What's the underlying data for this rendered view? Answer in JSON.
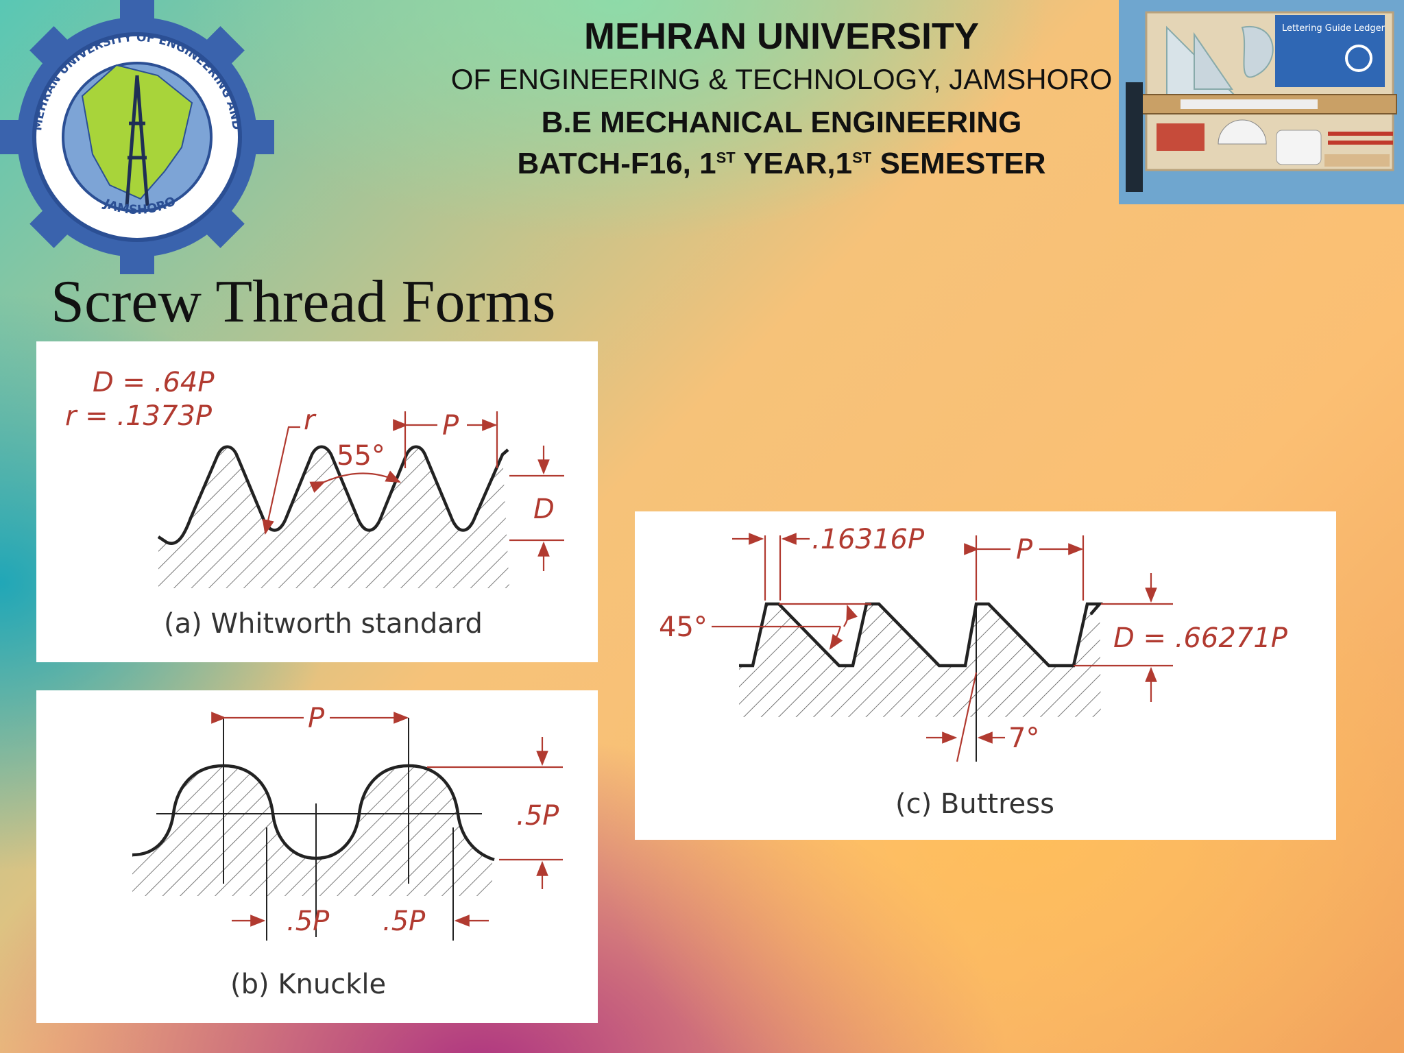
{
  "header": {
    "university": "MEHRAN UNIVERSITY",
    "subtitle": "OF ENGINEERING & TECHNOLOGY, JAMSHORO",
    "program": "B.E MECHANICAL ENGINEERING",
    "batch_prefix": "BATCH-F16, 1",
    "batch_sup1": "ST",
    "batch_mid": " YEAR,1",
    "batch_sup2": "ST",
    "batch_suffix": " SEMESTER"
  },
  "logo": {
    "ring_text": "MEHRAN UNIVERSITY OF ENGINEERING AND TECHNOLOGY",
    "bottom_text": "JAMSHORO"
  },
  "kit_photo": {
    "package_title": "Lettering Guide Ledger"
  },
  "slide_title": "Screw Thread Forms",
  "figures": {
    "whitworth": {
      "caption": "(a) Whitworth standard",
      "formula_d": "D = .64P",
      "formula_r": "r = .1373P",
      "label_r": "r",
      "angle": "55°",
      "pitch": "P",
      "depth": "D"
    },
    "knuckle": {
      "caption": "(b) Knuckle",
      "pitch": "P",
      "height": ".5P",
      "half_left": ".5P",
      "half_right": ".5P"
    },
    "buttress": {
      "caption": "(c) Buttress",
      "offset": ".16316P",
      "pitch": "P",
      "angle_45": "45°",
      "depth": "D = .66271P",
      "angle_7": "7°"
    }
  },
  "colors": {
    "dimension_red": "#b13a30",
    "outline": "#222222"
  }
}
